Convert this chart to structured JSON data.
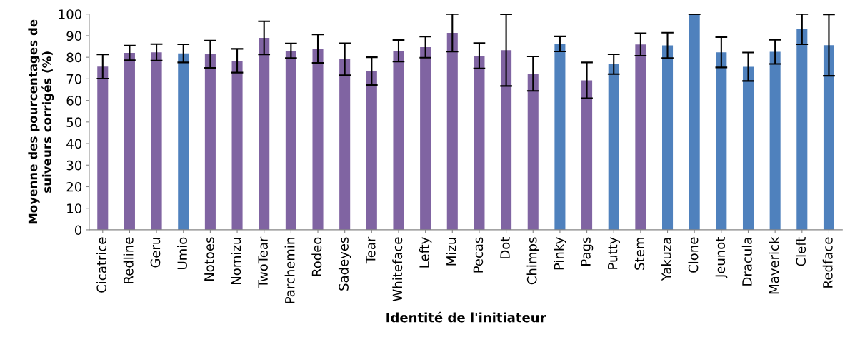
{
  "chart_data": {
    "type": "bar",
    "xlabel": "Identité de l'initiateur",
    "ylabel": "Moyenne des pourcentages de\nsuiveurs corrigés (%)",
    "categories": [
      "Cicatrice",
      "Redline",
      "Geru",
      "Umio",
      "Notoes",
      "Nomizu",
      "TwoTear",
      "Parchemin",
      "Rodeo",
      "Sadeyes",
      "Tear",
      "Whiteface",
      "Lefty",
      "Mizu",
      "Pecas",
      "Dot",
      "Chimps",
      "Pinky",
      "Pags",
      "Putty",
      "Stem",
      "Yakuza",
      "Clone",
      "Jeunot",
      "Dracula",
      "Maverick",
      "Cleft",
      "Redface"
    ],
    "values": [
      75.7,
      82.0,
      82.3,
      81.8,
      81.4,
      78.4,
      89.0,
      83.0,
      84.0,
      79.1,
      73.6,
      83.0,
      84.7,
      91.3,
      80.7,
      83.3,
      72.4,
      86.2,
      69.3,
      76.8,
      85.9,
      85.5,
      100,
      82.3,
      75.6,
      82.5,
      93.0,
      85.6
    ],
    "errors": [
      5.6,
      3.4,
      3.8,
      4.2,
      6.3,
      5.5,
      7.7,
      3.4,
      6.6,
      7.4,
      6.4,
      5.0,
      4.9,
      8.7,
      5.9,
      16.6,
      8.0,
      3.5,
      8.3,
      4.6,
      5.2,
      5.9,
      0,
      7.0,
      6.6,
      5.6,
      7.0,
      14.2
    ],
    "colors": [
      "#8064a2",
      "#8064a2",
      "#8064a2",
      "#4f81bd",
      "#8064a2",
      "#8064a2",
      "#8064a2",
      "#8064a2",
      "#8064a2",
      "#8064a2",
      "#8064a2",
      "#8064a2",
      "#8064a2",
      "#8064a2",
      "#8064a2",
      "#8064a2",
      "#8064a2",
      "#4f81bd",
      "#8064a2",
      "#4f81bd",
      "#8064a2",
      "#4f81bd",
      "#4f81bd",
      "#4f81bd",
      "#4f81bd",
      "#4f81bd",
      "#4f81bd",
      "#4f81bd"
    ],
    "ylim": [
      0,
      100
    ],
    "yticks": [
      0,
      10,
      20,
      30,
      40,
      50,
      60,
      70,
      80,
      90,
      100
    ],
    "grid": false
  }
}
